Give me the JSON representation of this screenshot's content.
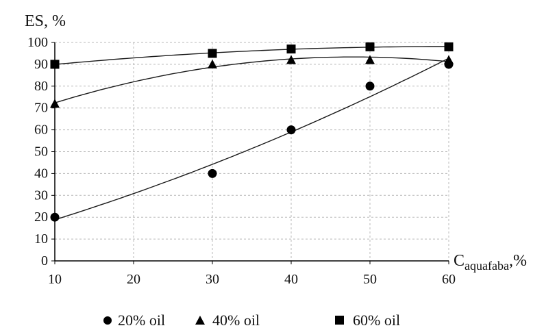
{
  "chart_data": {
    "type": "scatter",
    "ylabel": "ES, %",
    "xlabel_main": "C",
    "xlabel_sub": "aquafaba",
    "xlabel_unit": ",%",
    "x_ticks": [
      "10",
      "20",
      "30",
      "40",
      "50",
      "60"
    ],
    "y_ticks": [
      "0",
      "10",
      "20",
      "30",
      "40",
      "50",
      "60",
      "70",
      "80",
      "90",
      "100"
    ],
    "xlim": [
      10,
      60
    ],
    "ylim": [
      0,
      100
    ],
    "grid": true,
    "legend_position": "bottom",
    "series": [
      {
        "name": "20% oil",
        "marker": "circle",
        "x": [
          10,
          30,
          40,
          50,
          60
        ],
        "y": [
          20,
          40,
          60,
          80,
          90
        ]
      },
      {
        "name": "40% oil",
        "marker": "triangle",
        "x": [
          10,
          30,
          40,
          50,
          60
        ],
        "y": [
          72,
          90,
          92,
          92,
          92
        ]
      },
      {
        "name": "60% oil",
        "marker": "square",
        "x": [
          10,
          30,
          40,
          50,
          60
        ],
        "y": [
          90,
          95,
          97,
          98,
          98
        ]
      }
    ],
    "colors": {
      "marker": "#000000",
      "trend": "#1a1a1a",
      "grid": "#b8b8b8"
    }
  }
}
